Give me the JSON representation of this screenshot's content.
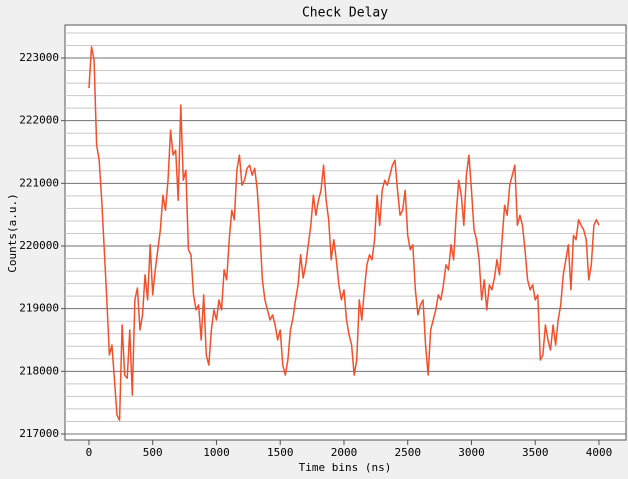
{
  "chart_data": {
    "type": "line",
    "title": "Check Delay",
    "xlabel": "Time bins (ns)",
    "ylabel": "Counts(a.u.)",
    "x": [
      0,
      20,
      40,
      60,
      80,
      100,
      120,
      140,
      160,
      180,
      200,
      220,
      240,
      260,
      280,
      300,
      320,
      340,
      360,
      380,
      400,
      420,
      440,
      460,
      480,
      500,
      520,
      540,
      560,
      580,
      600,
      620,
      640,
      660,
      680,
      700,
      720,
      740,
      760,
      780,
      800,
      820,
      840,
      860,
      880,
      900,
      920,
      940,
      960,
      980,
      1000,
      1020,
      1040,
      1060,
      1080,
      1100,
      1120,
      1140,
      1160,
      1180,
      1200,
      1220,
      1240,
      1260,
      1280,
      1300,
      1320,
      1340,
      1360,
      1380,
      1400,
      1420,
      1440,
      1460,
      1480,
      1500,
      1520,
      1540,
      1560,
      1580,
      1600,
      1620,
      1640,
      1660,
      1680,
      1700,
      1720,
      1740,
      1760,
      1780,
      1800,
      1820,
      1840,
      1860,
      1880,
      1900,
      1920,
      1940,
      1960,
      1980,
      2000,
      2020,
      2040,
      2060,
      2080,
      2100,
      2120,
      2140,
      2160,
      2180,
      2200,
      2220,
      2240,
      2260,
      2280,
      2300,
      2320,
      2340,
      2360,
      2380,
      2400,
      2420,
      2440,
      2460,
      2480,
      2500,
      2520,
      2540,
      2560,
      2580,
      2600,
      2620,
      2640,
      2660,
      2680,
      2700,
      2720,
      2740,
      2760,
      2780,
      2800,
      2820,
      2840,
      2860,
      2880,
      2900,
      2920,
      2940,
      2960,
      2980,
      3000,
      3020,
      3040,
      3060,
      3080,
      3100,
      3120,
      3140,
      3160,
      3180,
      3200,
      3220,
      3240,
      3260,
      3280,
      3300,
      3320,
      3340,
      3360,
      3380,
      3400,
      3420,
      3440,
      3460,
      3480,
      3500,
      3520,
      3540,
      3560,
      3580,
      3600,
      3620,
      3640,
      3660,
      3680,
      3700,
      3720,
      3740,
      3760,
      3780,
      3800,
      3820,
      3840,
      3860,
      3880,
      3900,
      3920,
      3940,
      3960,
      3980,
      4000
    ],
    "series": [
      {
        "name": "Counts",
        "color": "#f0502a",
        "values": [
          222520,
          223180,
          222970,
          221610,
          221370,
          220730,
          219940,
          219140,
          218260,
          218420,
          217860,
          217300,
          217220,
          218740,
          217940,
          217890,
          218660,
          217620,
          219140,
          219330,
          218660,
          218900,
          219540,
          219140,
          220020,
          219220,
          219620,
          219940,
          220260,
          220810,
          220570,
          221050,
          221850,
          221450,
          221530,
          220730,
          222250,
          221050,
          221210,
          219940,
          219860,
          219220,
          218980,
          219060,
          218500,
          219220,
          218260,
          218100,
          218660,
          218980,
          218820,
          219140,
          218980,
          219620,
          219460,
          220100,
          220570,
          220420,
          221210,
          221450,
          220970,
          221050,
          221240,
          221290,
          221130,
          221240,
          220890,
          220260,
          219460,
          219140,
          218980,
          218820,
          218900,
          218740,
          218500,
          218660,
          218100,
          217940,
          218180,
          218660,
          218850,
          219140,
          219380,
          219860,
          219490,
          219700,
          220020,
          220330,
          220810,
          220490,
          220730,
          220890,
          221290,
          220730,
          220420,
          219780,
          220100,
          219780,
          219380,
          219140,
          219300,
          218820,
          218580,
          218420,
          217940,
          218180,
          219140,
          218820,
          219300,
          219700,
          219860,
          219780,
          220100,
          220810,
          220330,
          220890,
          221050,
          220970,
          221130,
          221290,
          221370,
          220890,
          220490,
          220570,
          220890,
          220170,
          219940,
          220020,
          219300,
          218900,
          219060,
          219140,
          218420,
          217940,
          218660,
          218820,
          218980,
          219220,
          219140,
          219380,
          219700,
          219620,
          220020,
          219780,
          220490,
          221050,
          220810,
          220330,
          221130,
          221450,
          220890,
          220260,
          220100,
          219780,
          219140,
          219460,
          218980,
          219380,
          219300,
          219490,
          219780,
          219540,
          220100,
          220650,
          220490,
          220970,
          221130,
          221290,
          220330,
          220490,
          220330,
          219940,
          219460,
          219300,
          219380,
          219140,
          219220,
          218180,
          218260,
          218740,
          218500,
          218340,
          218740,
          218420,
          218820,
          219060,
          219540,
          219780,
          220020,
          219300,
          220170,
          220100,
          220420,
          220330,
          220260,
          220100,
          219460,
          219700,
          220330,
          220420,
          220330
        ]
      }
    ],
    "xlim": [
      -188,
      4212
    ],
    "ylim": [
      216904,
      223527
    ],
    "xticks": [
      0,
      500,
      1000,
      1500,
      2000,
      2500,
      3000,
      3500,
      4000
    ],
    "yticks": [
      217000,
      218000,
      219000,
      220000,
      221000,
      222000,
      223000
    ],
    "yminorticks": [
      217200,
      217400,
      217600,
      217800,
      218200,
      218400,
      218600,
      218800,
      219200,
      219400,
      219600,
      219800,
      220200,
      220400,
      220600,
      220800,
      221200,
      221400,
      221600,
      221800,
      222200,
      222400,
      222600,
      222800,
      223200,
      223400
    ],
    "grid": true
  }
}
